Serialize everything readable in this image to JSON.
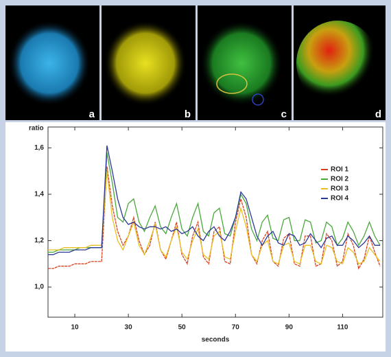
{
  "panels": {
    "labels": [
      "a",
      "b",
      "c",
      "d"
    ]
  },
  "chart_data": {
    "type": "line",
    "y_label": "ratio",
    "x_label": "seconds",
    "x": [
      0,
      2,
      4,
      6,
      8,
      10,
      12,
      14,
      16,
      18,
      20,
      22,
      24,
      26,
      28,
      30,
      32,
      34,
      36,
      38,
      40,
      42,
      44,
      46,
      48,
      50,
      52,
      54,
      56,
      58,
      60,
      62,
      64,
      66,
      68,
      70,
      72,
      74,
      76,
      78,
      80,
      82,
      84,
      86,
      88,
      90,
      92,
      94,
      96,
      98,
      100,
      102,
      104,
      106,
      108,
      110,
      112,
      114,
      116,
      118,
      120,
      122,
      124
    ],
    "series": [
      {
        "name": "ROI 1",
        "color": "#d8401e",
        "values": [
          1.08,
          1.08,
          1.09,
          1.09,
          1.09,
          1.1,
          1.1,
          1.1,
          1.11,
          1.11,
          1.11,
          1.52,
          1.35,
          1.24,
          1.18,
          1.22,
          1.3,
          1.2,
          1.14,
          1.18,
          1.28,
          1.16,
          1.12,
          1.2,
          1.28,
          1.14,
          1.1,
          1.22,
          1.28,
          1.13,
          1.1,
          1.24,
          1.26,
          1.11,
          1.1,
          1.28,
          1.38,
          1.3,
          1.14,
          1.1,
          1.2,
          1.24,
          1.11,
          1.09,
          1.21,
          1.23,
          1.1,
          1.09,
          1.22,
          1.22,
          1.09,
          1.1,
          1.23,
          1.2,
          1.09,
          1.11,
          1.23,
          1.18,
          1.08,
          1.12,
          1.22,
          1.15,
          1.09
        ]
      },
      {
        "name": "ROI 2",
        "color": "#48a838",
        "values": [
          1.15,
          1.15,
          1.16,
          1.16,
          1.16,
          1.16,
          1.17,
          1.17,
          1.17,
          1.17,
          1.17,
          1.58,
          1.45,
          1.3,
          1.28,
          1.36,
          1.38,
          1.28,
          1.24,
          1.3,
          1.35,
          1.26,
          1.23,
          1.3,
          1.36,
          1.25,
          1.22,
          1.3,
          1.36,
          1.24,
          1.22,
          1.32,
          1.34,
          1.23,
          1.22,
          1.3,
          1.4,
          1.36,
          1.25,
          1.2,
          1.28,
          1.31,
          1.21,
          1.2,
          1.29,
          1.3,
          1.2,
          1.2,
          1.29,
          1.28,
          1.19,
          1.2,
          1.28,
          1.26,
          1.18,
          1.21,
          1.28,
          1.24,
          1.18,
          1.22,
          1.28,
          1.22,
          1.18
        ]
      },
      {
        "name": "ROI 3",
        "color": "#e8c020",
        "values": [
          1.16,
          1.16,
          1.16,
          1.17,
          1.17,
          1.17,
          1.17,
          1.17,
          1.18,
          1.18,
          1.18,
          1.5,
          1.3,
          1.2,
          1.16,
          1.22,
          1.28,
          1.18,
          1.14,
          1.2,
          1.27,
          1.16,
          1.13,
          1.2,
          1.26,
          1.15,
          1.12,
          1.2,
          1.25,
          1.14,
          1.12,
          1.22,
          1.24,
          1.13,
          1.12,
          1.24,
          1.34,
          1.26,
          1.14,
          1.11,
          1.18,
          1.2,
          1.11,
          1.1,
          1.18,
          1.19,
          1.11,
          1.1,
          1.18,
          1.18,
          1.11,
          1.1,
          1.18,
          1.17,
          1.11,
          1.1,
          1.17,
          1.15,
          1.1,
          1.11,
          1.17,
          1.14,
          1.11
        ]
      },
      {
        "name": "ROI 4",
        "color": "#2a3898",
        "values": [
          1.14,
          1.14,
          1.15,
          1.15,
          1.15,
          1.16,
          1.16,
          1.16,
          1.17,
          1.17,
          1.17,
          1.61,
          1.5,
          1.38,
          1.3,
          1.27,
          1.28,
          1.26,
          1.25,
          1.26,
          1.26,
          1.25,
          1.26,
          1.24,
          1.25,
          1.23,
          1.24,
          1.26,
          1.22,
          1.2,
          1.24,
          1.26,
          1.22,
          1.2,
          1.24,
          1.3,
          1.41,
          1.38,
          1.3,
          1.22,
          1.18,
          1.22,
          1.24,
          1.19,
          1.18,
          1.23,
          1.22,
          1.18,
          1.19,
          1.23,
          1.2,
          1.17,
          1.21,
          1.22,
          1.18,
          1.18,
          1.22,
          1.2,
          1.17,
          1.19,
          1.22,
          1.18,
          1.18
        ]
      }
    ],
    "xlim": [
      0,
      125
    ],
    "ylim": [
      0.87,
      1.69
    ],
    "xticks": [
      10,
      30,
      50,
      70,
      90,
      110
    ],
    "yticks": [
      {
        "value": 1.0,
        "label": "1,0"
      },
      {
        "value": 1.2,
        "label": "1,2"
      },
      {
        "value": 1.4,
        "label": "1,4"
      },
      {
        "value": 1.6,
        "label": "1,6"
      }
    ],
    "legend": "right"
  }
}
